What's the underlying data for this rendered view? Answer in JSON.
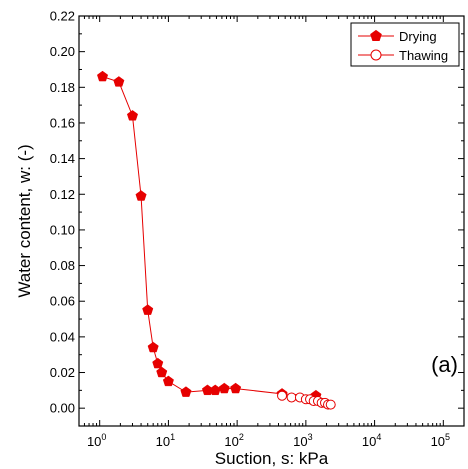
{
  "chart_data": {
    "type": "scatter",
    "xlabel": "Suction, s: kPa",
    "ylabel": "Water content, w: (-)",
    "x_scale": "log",
    "xlim": [
      0.5,
      200000
    ],
    "ylim": [
      -0.01,
      0.22
    ],
    "x_ticks": [
      {
        "value": 1,
        "label": "10^0",
        "base": "10",
        "exp": "0"
      },
      {
        "value": 10,
        "label": "10^1",
        "base": "10",
        "exp": "1"
      },
      {
        "value": 100,
        "label": "10^2",
        "base": "10",
        "exp": "2"
      },
      {
        "value": 1000,
        "label": "10^3",
        "base": "10",
        "exp": "3"
      },
      {
        "value": 10000,
        "label": "10^4",
        "base": "10",
        "exp": "4"
      },
      {
        "value": 100000,
        "label": "10^5",
        "base": "10",
        "exp": "5"
      }
    ],
    "y_ticks": [
      {
        "value": 0.0,
        "label": "0.00"
      },
      {
        "value": 0.02,
        "label": "0.02"
      },
      {
        "value": 0.04,
        "label": "0.04"
      },
      {
        "value": 0.06,
        "label": "0.06"
      },
      {
        "value": 0.08,
        "label": "0.08"
      },
      {
        "value": 0.1,
        "label": "0.10"
      },
      {
        "value": 0.12,
        "label": "0.12"
      },
      {
        "value": 0.14,
        "label": "0.14"
      },
      {
        "value": 0.16,
        "label": "0.16"
      },
      {
        "value": 0.18,
        "label": "0.18"
      },
      {
        "value": 0.2,
        "label": "0.20"
      },
      {
        "value": 0.22,
        "label": "0.22"
      }
    ],
    "annotation": "(a)",
    "legend_position": "top-right",
    "grid": false,
    "series": [
      {
        "name": "Drying",
        "marker": "filled-pentagon",
        "color": "#e60000",
        "points": [
          {
            "x": 1.1,
            "y": 0.186
          },
          {
            "x": 1.9,
            "y": 0.183
          },
          {
            "x": 3.0,
            "y": 0.164
          },
          {
            "x": 4.0,
            "y": 0.119
          },
          {
            "x": 5.0,
            "y": 0.055
          },
          {
            "x": 6.0,
            "y": 0.034
          },
          {
            "x": 7.0,
            "y": 0.025
          },
          {
            "x": 8.0,
            "y": 0.02
          },
          {
            "x": 10,
            "y": 0.015
          },
          {
            "x": 18,
            "y": 0.009
          },
          {
            "x": 37,
            "y": 0.01
          },
          {
            "x": 48,
            "y": 0.01
          },
          {
            "x": 65,
            "y": 0.011
          },
          {
            "x": 95,
            "y": 0.011
          },
          {
            "x": 450,
            "y": 0.008
          },
          {
            "x": 1400,
            "y": 0.007
          }
        ]
      },
      {
        "name": "Thawing",
        "marker": "open-circle",
        "color": "#e60000",
        "points": [
          {
            "x": 450,
            "y": 0.007
          },
          {
            "x": 620,
            "y": 0.006
          },
          {
            "x": 820,
            "y": 0.006
          },
          {
            "x": 1000,
            "y": 0.005
          },
          {
            "x": 1150,
            "y": 0.005
          },
          {
            "x": 1300,
            "y": 0.004
          },
          {
            "x": 1500,
            "y": 0.004
          },
          {
            "x": 1700,
            "y": 0.003
          },
          {
            "x": 1900,
            "y": 0.003
          },
          {
            "x": 2100,
            "y": 0.002
          },
          {
            "x": 2300,
            "y": 0.002
          }
        ]
      }
    ]
  }
}
